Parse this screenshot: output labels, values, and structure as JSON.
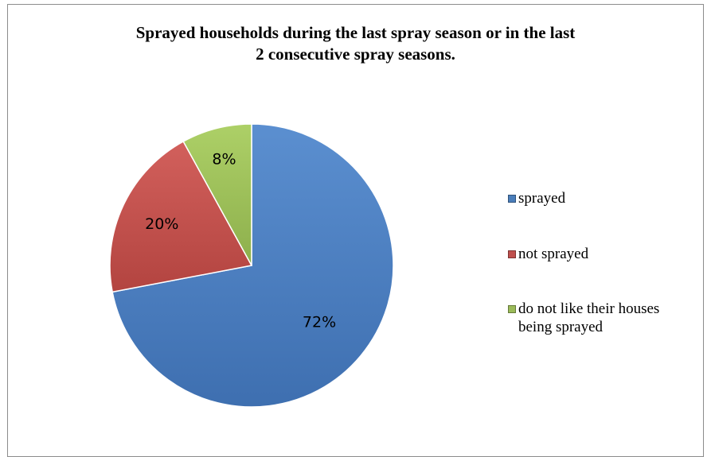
{
  "chart_data": {
    "type": "pie",
    "title_lines": [
      "Sprayed households during the last spray season or in the last",
      "2 consecutive spray seasons."
    ],
    "categories": [
      "sprayed",
      "not sprayed",
      "do not like their houses being sprayed"
    ],
    "values": [
      72,
      20,
      8
    ],
    "labels": [
      "72%",
      "20%",
      "8%"
    ],
    "colors": [
      "#4a7ebb",
      "#c0504d",
      "#9bbb59"
    ],
    "legend_position": "right"
  },
  "legend": {
    "items": [
      {
        "label": "sprayed",
        "color": "#4a7ebb"
      },
      {
        "label": "not sprayed",
        "color": "#c0504d"
      },
      {
        "label_lines": [
          "do not like their houses",
          "being sprayed"
        ],
        "color": "#9bbb59"
      }
    ]
  }
}
